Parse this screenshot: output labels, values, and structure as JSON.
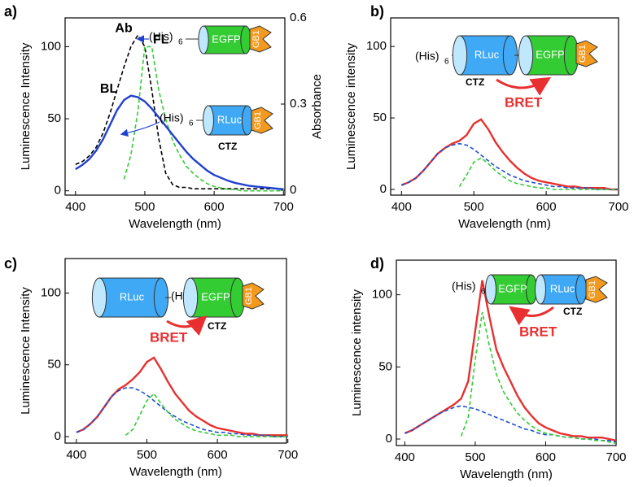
{
  "chart_data": [
    {
      "type": "line",
      "panel": "a)",
      "xlabel": "Wavelength (nm)",
      "ylabel": "Luminescence  Intensity",
      "y2label": "Absorbance",
      "x": [
        400,
        410,
        420,
        430,
        440,
        450,
        460,
        470,
        480,
        490,
        500,
        510,
        520,
        530,
        540,
        550,
        560,
        570,
        580,
        590,
        600,
        610,
        620,
        630,
        640,
        650,
        660,
        670,
        680,
        690,
        700
      ],
      "series": [
        {
          "name": "Ab",
          "color": "#000000",
          "dash": true,
          "axis": "y2",
          "values": [
            0.09,
            0.1,
            0.12,
            0.15,
            0.2,
            0.27,
            0.35,
            0.43,
            0.5,
            0.54,
            0.5,
            0.35,
            0.18,
            0.06,
            0.02,
            0.01,
            0.01,
            0.005,
            0.005,
            0.005,
            0.005,
            0.005,
            0.005,
            0.005,
            0.005,
            0.005,
            0.005,
            0.005,
            0.005,
            0.005,
            0.005
          ]
        },
        {
          "name": "FL",
          "color": "#33cc33",
          "dash": true,
          "values": [
            null,
            null,
            null,
            null,
            null,
            null,
            null,
            8,
            25,
            55,
            100,
            100,
            70,
            50,
            35,
            25,
            17,
            12,
            8,
            5,
            3,
            2,
            1,
            1,
            0,
            0,
            0,
            0,
            0,
            0,
            0
          ]
        },
        {
          "name": "BL",
          "color": "#2040d0",
          "dash": false,
          "values": [
            15,
            18,
            22,
            28,
            36,
            46,
            56,
            63,
            66,
            65,
            62,
            57,
            51,
            45,
            39,
            33,
            27,
            22,
            18,
            14,
            11,
            9,
            7,
            5.5,
            4.5,
            3.5,
            3,
            2.5,
            2,
            1.5,
            1
          ]
        }
      ],
      "xlim": [
        385,
        702
      ],
      "ylim": [
        -3,
        120
      ],
      "y2lim": [
        -0.017,
        0.6
      ],
      "xticks": [
        400,
        500,
        600,
        700
      ],
      "yticks": [
        0,
        50,
        100
      ],
      "y2ticks": [
        0,
        0.3,
        0.6
      ],
      "labels": {
        "his": "(His)",
        "sub": "6",
        "egfp": "EGFP",
        "gb1": "GB1",
        "rluc": "RLuc",
        "ctz": "CTZ"
      }
    },
    {
      "type": "line",
      "panel": "b)",
      "xlabel": "Wavelength (nm)",
      "ylabel": "Luminescence intensity",
      "x": [
        400,
        410,
        420,
        430,
        440,
        450,
        460,
        470,
        480,
        490,
        500,
        510,
        520,
        530,
        540,
        550,
        560,
        570,
        580,
        590,
        600,
        610,
        620,
        630,
        640,
        650,
        660,
        670,
        680,
        690,
        700
      ],
      "series": [
        {
          "color": "#e83030",
          "dash": false,
          "values": [
            3,
            5,
            8,
            13,
            19,
            25,
            29,
            32,
            34,
            38,
            46,
            49,
            42,
            33,
            26,
            20,
            15,
            11,
            8,
            6,
            5,
            4,
            3,
            2,
            2,
            1,
            1,
            1,
            1,
            0,
            0
          ]
        },
        {
          "color": "#2050d0",
          "dash": true,
          "values": [
            3,
            5,
            8,
            13,
            19,
            25,
            29,
            31,
            32,
            31,
            28,
            24,
            20,
            16,
            13,
            10,
            8,
            6,
            5,
            4,
            3,
            2,
            2,
            1,
            1,
            1,
            1,
            0,
            0,
            0,
            0
          ]
        },
        {
          "color": "#33cc33",
          "dash": true,
          "values": [
            null,
            null,
            null,
            null,
            null,
            null,
            null,
            null,
            2,
            10,
            19,
            22,
            18,
            13,
            9,
            6,
            4,
            3,
            2,
            1,
            1,
            0,
            0,
            0,
            0,
            0,
            0,
            0,
            0,
            0,
            0
          ]
        }
      ],
      "xlim": [
        385,
        700
      ],
      "ylim": [
        -4,
        120
      ],
      "xticks": [
        400,
        500,
        600,
        700
      ],
      "yticks": [
        0,
        50,
        100
      ],
      "labels": {
        "his": "(His)",
        "sub": "6",
        "rluc": "RLuc",
        "egfp": "EGFP",
        "gb1": "GB1",
        "ctz": "CTZ",
        "bret": "BRET"
      }
    },
    {
      "type": "line",
      "panel": "c)",
      "xlabel": "Wavelength (nm)",
      "ylabel": "Luminescence Intensity",
      "x": [
        400,
        410,
        420,
        430,
        440,
        450,
        460,
        470,
        480,
        490,
        500,
        510,
        520,
        530,
        540,
        550,
        560,
        570,
        580,
        590,
        600,
        610,
        620,
        630,
        640,
        650,
        660,
        670,
        680,
        690,
        700
      ],
      "series": [
        {
          "color": "#e83030",
          "dash": false,
          "values": [
            3,
            5,
            9,
            14,
            21,
            28,
            33,
            36,
            40,
            45,
            52,
            55,
            47,
            38,
            30,
            24,
            18,
            14,
            11,
            8,
            6,
            5,
            4,
            3,
            2,
            2,
            1,
            1,
            1,
            1,
            1
          ]
        },
        {
          "color": "#2050d0",
          "dash": true,
          "values": [
            3,
            5,
            9,
            14,
            21,
            28,
            32,
            34,
            34,
            32,
            29,
            25,
            21,
            17,
            14,
            11,
            9,
            7,
            5,
            4,
            3,
            3,
            2,
            2,
            1,
            1,
            1,
            1,
            0,
            0,
            0
          ]
        },
        {
          "color": "#33cc33",
          "dash": true,
          "values": [
            null,
            null,
            null,
            null,
            null,
            null,
            null,
            1,
            5,
            15,
            25,
            30,
            23,
            17,
            12,
            9,
            6,
            4,
            3,
            2,
            1,
            1,
            1,
            0,
            0,
            0,
            0,
            0,
            0,
            0,
            0
          ]
        }
      ],
      "xlim": [
        384,
        698
      ],
      "ylim": [
        -4.5,
        124
      ],
      "xticks": [
        400,
        500,
        600,
        700
      ],
      "yticks": [
        0,
        50,
        100
      ],
      "labels": {
        "rluc": "RLuc",
        "his": "(His)",
        "sub": "6",
        "egfp": "EGFP",
        "gb1": "GB1",
        "ctz": "CTZ",
        "bret": "BRET"
      }
    },
    {
      "type": "line",
      "panel": "d)",
      "xlabel": "Wavelength (nm)",
      "ylabel": "Luminescence  intensity",
      "x": [
        400,
        410,
        420,
        430,
        440,
        450,
        460,
        470,
        480,
        490,
        500,
        510,
        520,
        530,
        540,
        550,
        560,
        570,
        580,
        590,
        600,
        610,
        620,
        630,
        640,
        650,
        660,
        670,
        680,
        690,
        700
      ],
      "series": [
        {
          "color": "#e83030",
          "dash": false,
          "values": [
            4,
            6,
            9,
            12,
            15,
            18,
            21,
            24,
            28,
            40,
            75,
            110,
            85,
            62,
            50,
            40,
            30,
            22,
            16,
            11,
            8,
            6,
            4,
            3,
            2,
            2,
            1,
            1,
            1,
            0,
            -1
          ]
        },
        {
          "color": "#2050d0",
          "dash": true,
          "values": [
            4,
            6,
            9,
            12,
            15,
            18,
            20,
            22,
            23,
            22,
            21,
            19,
            17,
            15,
            13,
            11,
            9,
            7,
            6,
            4,
            3,
            3,
            2,
            1,
            1,
            0,
            0,
            0,
            -1,
            -1,
            -2
          ]
        },
        {
          "color": "#33cc33",
          "dash": true,
          "values": [
            null,
            null,
            null,
            null,
            null,
            null,
            null,
            null,
            2,
            15,
            55,
            88,
            65,
            45,
            33,
            25,
            18,
            13,
            9,
            6,
            4,
            3,
            2,
            1,
            1,
            0,
            0,
            -1,
            -1,
            -2,
            -3
          ]
        }
      ],
      "xlim": [
        388,
        700
      ],
      "ylim": [
        -4.5,
        124
      ],
      "xticks": [
        400,
        500,
        600,
        700
      ],
      "yticks": [
        0,
        50,
        100
      ],
      "labels": {
        "his": "(His)",
        "sub": "6",
        "egfp": "EGFP",
        "rluc": "RLuc",
        "gb1": "GB1",
        "ctz": "CTZ",
        "bret": "BRET"
      }
    }
  ]
}
